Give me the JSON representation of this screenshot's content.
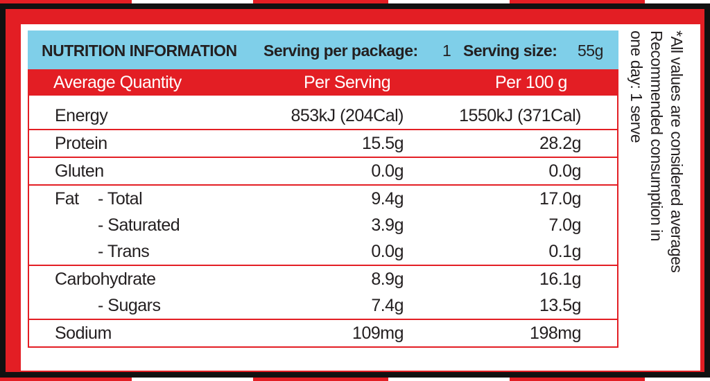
{
  "header": {
    "title": "NUTRITION INFORMATION",
    "serving_per_package_label": "Serving per package:",
    "serving_per_package": "1",
    "serving_size_label": "Serving size:",
    "serving_size": "55g"
  },
  "columns": [
    "Average Quantity",
    "Per Serving",
    "Per 100 g"
  ],
  "groups": [
    [
      {
        "label": "Energy",
        "per_serving": "853kJ (204Cal)",
        "per_100g": "1550kJ (371Cal)"
      }
    ],
    [
      {
        "label": "Protein",
        "per_serving": "15.5g",
        "per_100g": "28.2g"
      }
    ],
    [
      {
        "label": "Gluten",
        "per_serving": "0.0g",
        "per_100g": "0.0g"
      }
    ],
    [
      {
        "label": "Fat",
        "sublabel": "- Total",
        "per_serving": "9.4g",
        "per_100g": "17.0g"
      },
      {
        "sublabel": "- Saturated",
        "per_serving": "3.9g",
        "per_100g": "7.0g"
      },
      {
        "sublabel": "- Trans",
        "per_serving": "0.0g",
        "per_100g": "0.1g"
      }
    ],
    [
      {
        "label": "Carbohydrate",
        "per_serving": "8.9g",
        "per_100g": "16.1g"
      },
      {
        "sublabel": "- Sugars",
        "per_serving": "7.4g",
        "per_100g": "13.5g"
      }
    ],
    [
      {
        "label": "Sodium",
        "per_serving": "109mg",
        "per_100g": "198mg"
      }
    ]
  ],
  "note": [
    "*All values are considered averages",
    "Recommended consumption in",
    "one day: 1 serve"
  ]
}
